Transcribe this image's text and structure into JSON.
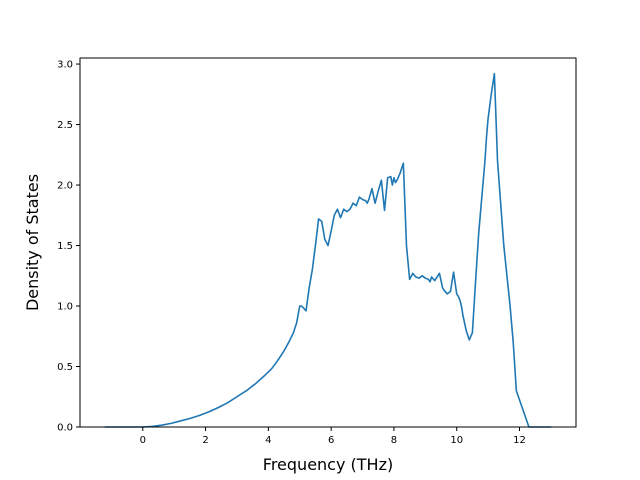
{
  "chart_data": {
    "type": "line",
    "title": "",
    "xlabel": "Frequency (THz)",
    "ylabel": "Density of States",
    "xlim": [
      -2.0,
      13.8
    ],
    "ylim": [
      0.0,
      3.05
    ],
    "xticks": [
      0,
      2,
      4,
      6,
      8,
      10,
      12
    ],
    "xtick_labels": [
      "0",
      "2",
      "4",
      "6",
      "8",
      "10",
      "12"
    ],
    "yticks": [
      0.0,
      0.5,
      1.0,
      1.5,
      2.0,
      2.5,
      3.0
    ],
    "ytick_labels": [
      "0.0",
      "0.5",
      "1.0",
      "1.5",
      "2.0",
      "2.5",
      "3.0"
    ],
    "grid": false,
    "legend": "none",
    "line_color": "#1f77b4",
    "series": [
      {
        "x": [
          -1.2,
          -0.6,
          0.0,
          0.3,
          0.6,
          0.9,
          1.2,
          1.5,
          1.8,
          2.1,
          2.4,
          2.7,
          3.0,
          3.3,
          3.6,
          3.9,
          4.1,
          4.3,
          4.5,
          4.65,
          4.8,
          4.9,
          5.0,
          5.05,
          5.1,
          5.2,
          5.3,
          5.4,
          5.5,
          5.6,
          5.65,
          5.7,
          5.8,
          5.9,
          6.0,
          6.1,
          6.2,
          6.3,
          6.4,
          6.5,
          6.6,
          6.7,
          6.8,
          6.9,
          7.0,
          7.1,
          7.15,
          7.2,
          7.3,
          7.4,
          7.5,
          7.6,
          7.7,
          7.8,
          7.9,
          7.95,
          8.0,
          8.05,
          8.1,
          8.2,
          8.3,
          8.4,
          8.5,
          8.6,
          8.7,
          8.8,
          8.9,
          9.0,
          9.1,
          9.15,
          9.2,
          9.3,
          9.4,
          9.45,
          9.5,
          9.55,
          9.6,
          9.7,
          9.8,
          9.9,
          10.0,
          10.05,
          10.1,
          10.15,
          10.2,
          10.3,
          10.4,
          10.5,
          10.6,
          10.7,
          10.8,
          10.9,
          10.95,
          11.0,
          11.1,
          11.2,
          11.3,
          11.4,
          11.5,
          11.6,
          11.7,
          11.8,
          11.9,
          12.3,
          13.0
        ],
        "y": [
          0.0,
          0.0,
          0.0,
          0.005,
          0.015,
          0.03,
          0.05,
          0.07,
          0.095,
          0.125,
          0.16,
          0.2,
          0.25,
          0.3,
          0.36,
          0.43,
          0.48,
          0.55,
          0.63,
          0.7,
          0.78,
          0.86,
          1.0,
          1.0,
          0.99,
          0.96,
          1.15,
          1.3,
          1.5,
          1.72,
          1.71,
          1.7,
          1.55,
          1.5,
          1.62,
          1.75,
          1.8,
          1.73,
          1.8,
          1.78,
          1.8,
          1.85,
          1.83,
          1.9,
          1.88,
          1.87,
          1.85,
          1.88,
          1.97,
          1.85,
          1.95,
          2.04,
          1.79,
          2.06,
          2.07,
          2.0,
          2.06,
          2.02,
          2.04,
          2.1,
          2.18,
          1.5,
          1.22,
          1.27,
          1.24,
          1.23,
          1.25,
          1.23,
          1.22,
          1.2,
          1.24,
          1.21,
          1.25,
          1.27,
          1.21,
          1.15,
          1.13,
          1.1,
          1.12,
          1.28,
          1.1,
          1.08,
          1.05,
          1.0,
          0.92,
          0.8,
          0.72,
          0.78,
          1.2,
          1.6,
          1.9,
          2.2,
          2.4,
          2.55,
          2.75,
          2.92,
          2.2,
          1.85,
          1.5,
          1.25,
          1.0,
          0.7,
          0.3,
          0.0,
          0.0
        ]
      }
    ]
  }
}
